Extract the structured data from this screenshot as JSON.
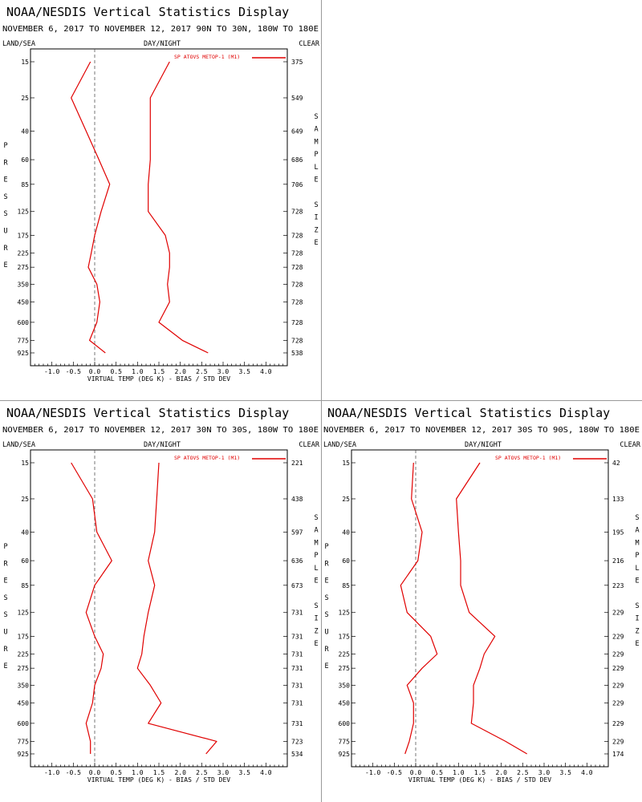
{
  "colors": {
    "series": "#e00000",
    "axis": "#000000",
    "zero_line": "#555555",
    "divider": "#9a9a9a"
  },
  "chart_data": [
    {
      "type": "line",
      "title": "NOAA/NESDIS Vertical Statistics Display",
      "subtitle": "NOVEMBER 6, 2017 TO NOVEMBER 12, 2017 90N TO 30N, 180W TO 180E",
      "corner_left": "LAND/SEA",
      "corner_mid": "DAY/NIGHT",
      "corner_right": "CLEAR",
      "xlabel": "VIRTUAL TEMP (DEG K) - BIAS / STD DEV",
      "ylabel": "PRESSURE",
      "y2label": "SAMPLE SIZE",
      "legend": "SP ATOVS METOP-1 (M1)",
      "xlim": [
        -1.5,
        4.5
      ],
      "x_ticks": [
        -1.0,
        -0.5,
        0.0,
        0.5,
        1.0,
        1.5,
        2.0,
        2.5,
        3.0,
        3.5,
        4.0
      ],
      "x_tick_labels": [
        "-1.0",
        "-0.5",
        "0.0",
        "0.5",
        "1.0",
        "1.5",
        "2.0",
        "2.5",
        "3.0",
        "3.5",
        "4.0"
      ],
      "pressure_levels": [
        "15",
        "25",
        "40",
        "60",
        "85",
        "125",
        "175",
        "225",
        "275",
        "350",
        "450",
        "600",
        "775",
        "925"
      ],
      "sample_size": [
        "375",
        "549",
        "649",
        "686",
        "706",
        "728",
        "728",
        "728",
        "728",
        "728",
        "728",
        "728",
        "728",
        "538"
      ],
      "series": [
        {
          "name": "bias",
          "values": [
            -0.1,
            -0.55,
            -0.2,
            0.1,
            0.35,
            0.15,
            0.0,
            -0.08,
            -0.15,
            0.05,
            0.12,
            0.05,
            -0.12,
            0.25
          ]
        },
        {
          "name": "std_dev",
          "values": [
            1.75,
            1.3,
            1.3,
            1.3,
            1.25,
            1.25,
            1.65,
            1.75,
            1.75,
            1.7,
            1.75,
            1.5,
            2.05,
            2.65
          ]
        }
      ]
    },
    {
      "type": "line",
      "title": "NOAA/NESDIS Vertical Statistics Display",
      "subtitle": "NOVEMBER 6, 2017 TO NOVEMBER 12, 2017 30N TO 30S, 180W TO 180E",
      "corner_left": "LAND/SEA",
      "corner_mid": "DAY/NIGHT",
      "corner_right": "CLEAR",
      "xlabel": "VIRTUAL TEMP (DEG K) - BIAS / STD DEV",
      "ylabel": "PRESSURE",
      "y2label": "SAMPLE SIZE",
      "legend": "SP ATOVS METOP-1 (M1)",
      "xlim": [
        -1.5,
        4.5
      ],
      "x_ticks": [
        -1.0,
        -0.5,
        0.0,
        0.5,
        1.0,
        1.5,
        2.0,
        2.5,
        3.0,
        3.5,
        4.0
      ],
      "x_tick_labels": [
        "-1.0",
        "-0.5",
        "0.0",
        "0.5",
        "1.0",
        "1.5",
        "2.0",
        "2.5",
        "3.0",
        "3.5",
        "4.0"
      ],
      "pressure_levels": [
        "15",
        "25",
        "40",
        "60",
        "85",
        "125",
        "175",
        "225",
        "275",
        "350",
        "450",
        "600",
        "775",
        "925"
      ],
      "sample_size": [
        "221",
        "438",
        "597",
        "636",
        "673",
        "731",
        "731",
        "731",
        "731",
        "731",
        "731",
        "731",
        "723",
        "534"
      ],
      "series": [
        {
          "name": "bias",
          "values": [
            -0.55,
            -0.05,
            0.05,
            0.4,
            0.0,
            -0.2,
            0.0,
            0.2,
            0.15,
            0.0,
            -0.05,
            -0.2,
            -0.1,
            -0.1
          ]
        },
        {
          "name": "std_dev",
          "values": [
            1.5,
            1.45,
            1.4,
            1.25,
            1.4,
            1.25,
            1.15,
            1.1,
            1.0,
            1.3,
            1.55,
            1.25,
            2.85,
            2.6
          ]
        }
      ]
    },
    {
      "type": "line",
      "title": "NOAA/NESDIS Vertical Statistics Display",
      "subtitle": "NOVEMBER 6, 2017 TO NOVEMBER 12, 2017 30S TO 90S, 180W TO 180E",
      "corner_left": "LAND/SEA",
      "corner_mid": "DAY/NIGHT",
      "corner_right": "CLEAR",
      "xlabel": "VIRTUAL TEMP (DEG K) - BIAS / STD DEV",
      "ylabel": "PRESSURE",
      "y2label": "SAMPLE SIZE",
      "legend": "SP ATOVS METOP-1 (M1)",
      "xlim": [
        -1.5,
        4.5
      ],
      "x_ticks": [
        -1.0,
        -0.5,
        0.0,
        0.5,
        1.0,
        1.5,
        2.0,
        2.5,
        3.0,
        3.5,
        4.0
      ],
      "x_tick_labels": [
        "-1.0",
        "-0.5",
        "0.0",
        "0.5",
        "1.0",
        "1.5",
        "2.0",
        "2.5",
        "3.0",
        "3.5",
        "4.0"
      ],
      "pressure_levels": [
        "15",
        "25",
        "40",
        "60",
        "85",
        "125",
        "175",
        "225",
        "275",
        "350",
        "450",
        "600",
        "775",
        "925"
      ],
      "sample_size": [
        "42",
        "133",
        "195",
        "216",
        "223",
        "229",
        "229",
        "229",
        "229",
        "229",
        "229",
        "229",
        "229",
        "174"
      ],
      "series": [
        {
          "name": "bias",
          "values": [
            -0.05,
            -0.1,
            0.15,
            0.05,
            -0.35,
            -0.2,
            0.35,
            0.5,
            0.15,
            -0.2,
            -0.05,
            -0.05,
            -0.15,
            -0.25
          ]
        },
        {
          "name": "std_dev",
          "values": [
            1.5,
            0.95,
            1.0,
            1.05,
            1.05,
            1.25,
            1.85,
            1.6,
            1.5,
            1.35,
            1.35,
            1.3,
            2.1,
            2.6
          ]
        }
      ]
    }
  ]
}
